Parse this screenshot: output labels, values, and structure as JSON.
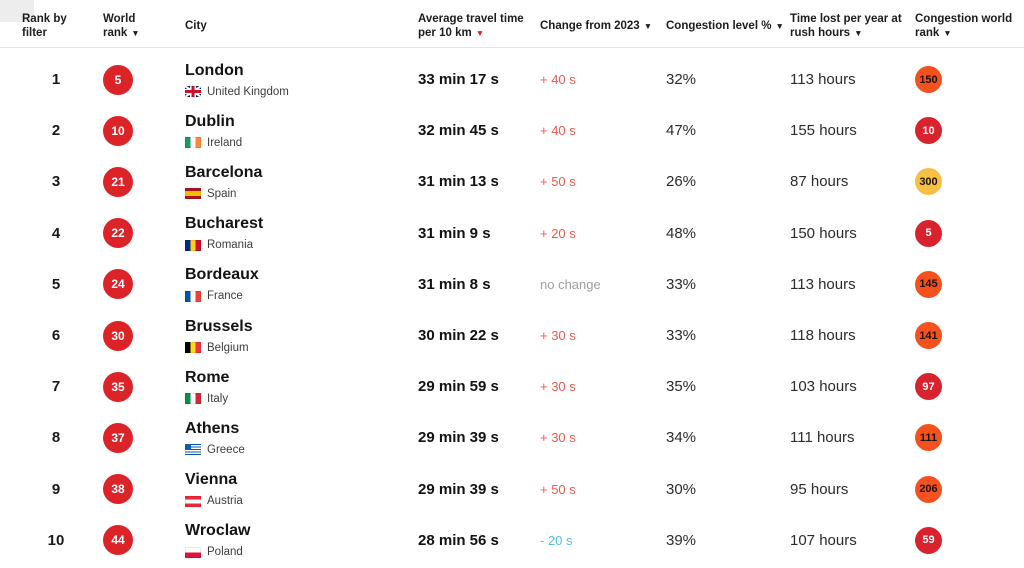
{
  "icons": {
    "sort_arrow": "▼"
  },
  "colors": {
    "world_rank_badge_bg": "#dc2428",
    "world_rank_badge_fg": "#ffffff",
    "badge_red": "#d8232e",
    "badge_orange": "#f4511e",
    "badge_amber": "#f6c044",
    "change": {
      "increase": "#ee5a52",
      "none": "#9e9e9e",
      "decrease": "#56bfe9"
    },
    "sort_arrow_red": "#e2231a"
  },
  "header": {
    "columns": [
      {
        "id": "rank-by-filter",
        "label": "Rank by filter",
        "sortable": false,
        "arrow": "none"
      },
      {
        "id": "world-rank",
        "label": "World rank",
        "sortable": true,
        "arrow": "black"
      },
      {
        "id": "city",
        "label": "City",
        "sortable": false,
        "arrow": "none"
      },
      {
        "id": "avg-travel-time",
        "label": "Average travel time per 10 km",
        "sortable": true,
        "arrow": "red"
      },
      {
        "id": "change-from-2023",
        "label": "Change from 2023",
        "sortable": true,
        "arrow": "black"
      },
      {
        "id": "congestion-level",
        "label": "Congestion level %",
        "sortable": true,
        "arrow": "black"
      },
      {
        "id": "time-lost",
        "label": "Time lost per year at rush hours",
        "sortable": true,
        "arrow": "black"
      },
      {
        "id": "congestion-world-rank",
        "label": "Congestion world rank",
        "sortable": true,
        "arrow": "black"
      }
    ]
  },
  "table": {
    "rows": [
      {
        "rank": "1",
        "world_rank": "5",
        "city": "London",
        "country": "United Kingdom",
        "flag": "gb",
        "travel_time": "33 min 17 s",
        "change": "+ 40 s",
        "change_type": "increase",
        "congestion_level": "32%",
        "time_lost": "113 hours",
        "world_badge": {
          "value": "150",
          "bg": "#f4511e",
          "fg": "#1d1208"
        }
      },
      {
        "rank": "2",
        "world_rank": "10",
        "city": "Dublin",
        "country": "Ireland",
        "flag": "ie",
        "travel_time": "32 min 45 s",
        "change": "+ 40 s",
        "change_type": "increase",
        "congestion_level": "47%",
        "time_lost": "155 hours",
        "world_badge": {
          "value": "10",
          "bg": "#d8232e",
          "fg": "#ffffff"
        }
      },
      {
        "rank": "3",
        "world_rank": "21",
        "city": "Barcelona",
        "country": "Spain",
        "flag": "es",
        "travel_time": "31 min 13 s",
        "change": "+ 50 s",
        "change_type": "increase",
        "congestion_level": "26%",
        "time_lost": "87 hours",
        "world_badge": {
          "value": "300",
          "bg": "#f6c044",
          "fg": "#1d1208"
        }
      },
      {
        "rank": "4",
        "world_rank": "22",
        "city": "Bucharest",
        "country": "Romania",
        "flag": "ro",
        "travel_time": "31 min 9 s",
        "change": "+ 20 s",
        "change_type": "increase",
        "congestion_level": "48%",
        "time_lost": "150 hours",
        "world_badge": {
          "value": "5",
          "bg": "#d8232e",
          "fg": "#ffffff"
        }
      },
      {
        "rank": "5",
        "world_rank": "24",
        "city": "Bordeaux",
        "country": "France",
        "flag": "fr",
        "travel_time": "31 min 8 s",
        "change": "no change",
        "change_type": "none",
        "congestion_level": "33%",
        "time_lost": "113 hours",
        "world_badge": {
          "value": "145",
          "bg": "#f4511e",
          "fg": "#1d1208"
        }
      },
      {
        "rank": "6",
        "world_rank": "30",
        "city": "Brussels",
        "country": "Belgium",
        "flag": "be",
        "travel_time": "30 min 22 s",
        "change": "+ 30 s",
        "change_type": "increase",
        "congestion_level": "33%",
        "time_lost": "118 hours",
        "world_badge": {
          "value": "141",
          "bg": "#f4511e",
          "fg": "#1d1208"
        }
      },
      {
        "rank": "7",
        "world_rank": "35",
        "city": "Rome",
        "country": "Italy",
        "flag": "it",
        "travel_time": "29 min 59 s",
        "change": "+ 30 s",
        "change_type": "increase",
        "congestion_level": "35%",
        "time_lost": "103 hours",
        "world_badge": {
          "value": "97",
          "bg": "#d8232e",
          "fg": "#ffffff"
        }
      },
      {
        "rank": "8",
        "world_rank": "37",
        "city": "Athens",
        "country": "Greece",
        "flag": "gr",
        "travel_time": "29 min 39 s",
        "change": "+ 30 s",
        "change_type": "increase",
        "congestion_level": "34%",
        "time_lost": "111 hours",
        "world_badge": {
          "value": "111",
          "bg": "#f4511e",
          "fg": "#1d1208"
        }
      },
      {
        "rank": "9",
        "world_rank": "38",
        "city": "Vienna",
        "country": "Austria",
        "flag": "at",
        "travel_time": "29 min 39 s",
        "change": "+ 50 s",
        "change_type": "increase",
        "congestion_level": "30%",
        "time_lost": "95 hours",
        "world_badge": {
          "value": "206",
          "bg": "#f4511e",
          "fg": "#1d1208"
        }
      },
      {
        "rank": "10",
        "world_rank": "44",
        "city": "Wroclaw",
        "country": "Poland",
        "flag": "pl",
        "travel_time": "28 min 56 s",
        "change": "- 20 s",
        "change_type": "decrease",
        "congestion_level": "39%",
        "time_lost": "107 hours",
        "world_badge": {
          "value": "59",
          "bg": "#d8232e",
          "fg": "#ffffff"
        }
      }
    ]
  }
}
